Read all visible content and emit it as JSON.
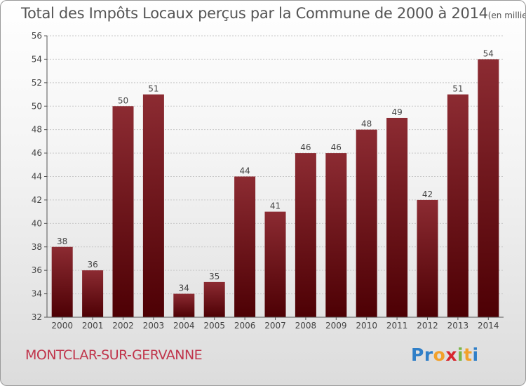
{
  "chart_data": {
    "type": "bar",
    "title": "Total des Impôts Locaux perçus par la Commune de 2000 à 2014",
    "unit_note": "(en milliers d'€)",
    "categories": [
      "2000",
      "2001",
      "2002",
      "2003",
      "2004",
      "2005",
      "2006",
      "2007",
      "2008",
      "2009",
      "2010",
      "2011",
      "2012",
      "2013",
      "2014"
    ],
    "values": [
      38,
      36,
      50,
      51,
      34,
      35,
      44,
      41,
      46,
      46,
      48,
      49,
      42,
      51,
      54
    ],
    "ylim": [
      32,
      56
    ],
    "yticks": [
      32,
      34,
      36,
      38,
      40,
      42,
      44,
      46,
      48,
      50,
      52,
      54,
      56
    ],
    "grid": true,
    "xlabel": "",
    "ylabel": "",
    "bar_color": "#7a1c22"
  },
  "commune": "MONTCLAR-SUR-GERVANNE",
  "brand": {
    "letters": [
      "P",
      "r",
      "o",
      "x",
      "i",
      "t",
      "i"
    ],
    "colors": [
      "#2f7fc8",
      "#2f7fc8",
      "#f2a12a",
      "#d8262e",
      "#7ab648",
      "#f2a12a",
      "#2f7fc8"
    ]
  }
}
